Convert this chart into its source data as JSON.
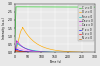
{
  "title": "",
  "xlabel": "Time (s)",
  "ylabel": "Intensity (a.u.)",
  "xlim": [
    0,
    300
  ],
  "ylim": [
    0,
    3.0
  ],
  "background_color": "#e8e8e8",
  "grid_color": "#ffffff",
  "lines": [
    {
      "label": "C  z = 0",
      "color": "#22cc22",
      "start": 0,
      "peak_x": 5,
      "peak_y": 2.8,
      "fall": 800,
      "flat": 2.75
    },
    {
      "label": "O  z = 0",
      "color": "#ffaa00",
      "start": 0,
      "peak_x": 30,
      "peak_y": 1.55,
      "fall": 50,
      "flat": 0
    },
    {
      "label": "Fe z = 0",
      "color": "#00cccc",
      "start": 0,
      "peak_x": 10,
      "peak_y": 0.55,
      "fall": 40,
      "flat": 0
    },
    {
      "label": "Zn z = 0",
      "color": "#aa00cc",
      "start": 0,
      "peak_x": 8,
      "peak_y": 0.72,
      "fall": 30,
      "flat": 0
    },
    {
      "label": "Ca z = 0",
      "color": "#ff88ff",
      "start": 0,
      "peak_x": 12,
      "peak_y": 0.3,
      "fall": 35,
      "flat": 0
    },
    {
      "label": "P  z = 0",
      "color": "#0000ff",
      "start": 0,
      "peak_x": 5,
      "peak_y": 0.22,
      "fall": 25,
      "flat": 0
    },
    {
      "label": "S  z = 0",
      "color": "#ff0000",
      "start": 0,
      "peak_x": 4,
      "peak_y": 0.15,
      "fall": 20,
      "flat": 0
    },
    {
      "label": "N  z = 0",
      "color": "#cc6600",
      "start": 0,
      "peak_x": 3,
      "peak_y": 0.1,
      "fall": 18,
      "flat": 0
    }
  ],
  "xticks": [
    0,
    50,
    100,
    150,
    200,
    250,
    300
  ],
  "yticks": [
    0,
    0.5,
    1.0,
    1.5,
    2.0,
    2.5,
    3.0
  ]
}
